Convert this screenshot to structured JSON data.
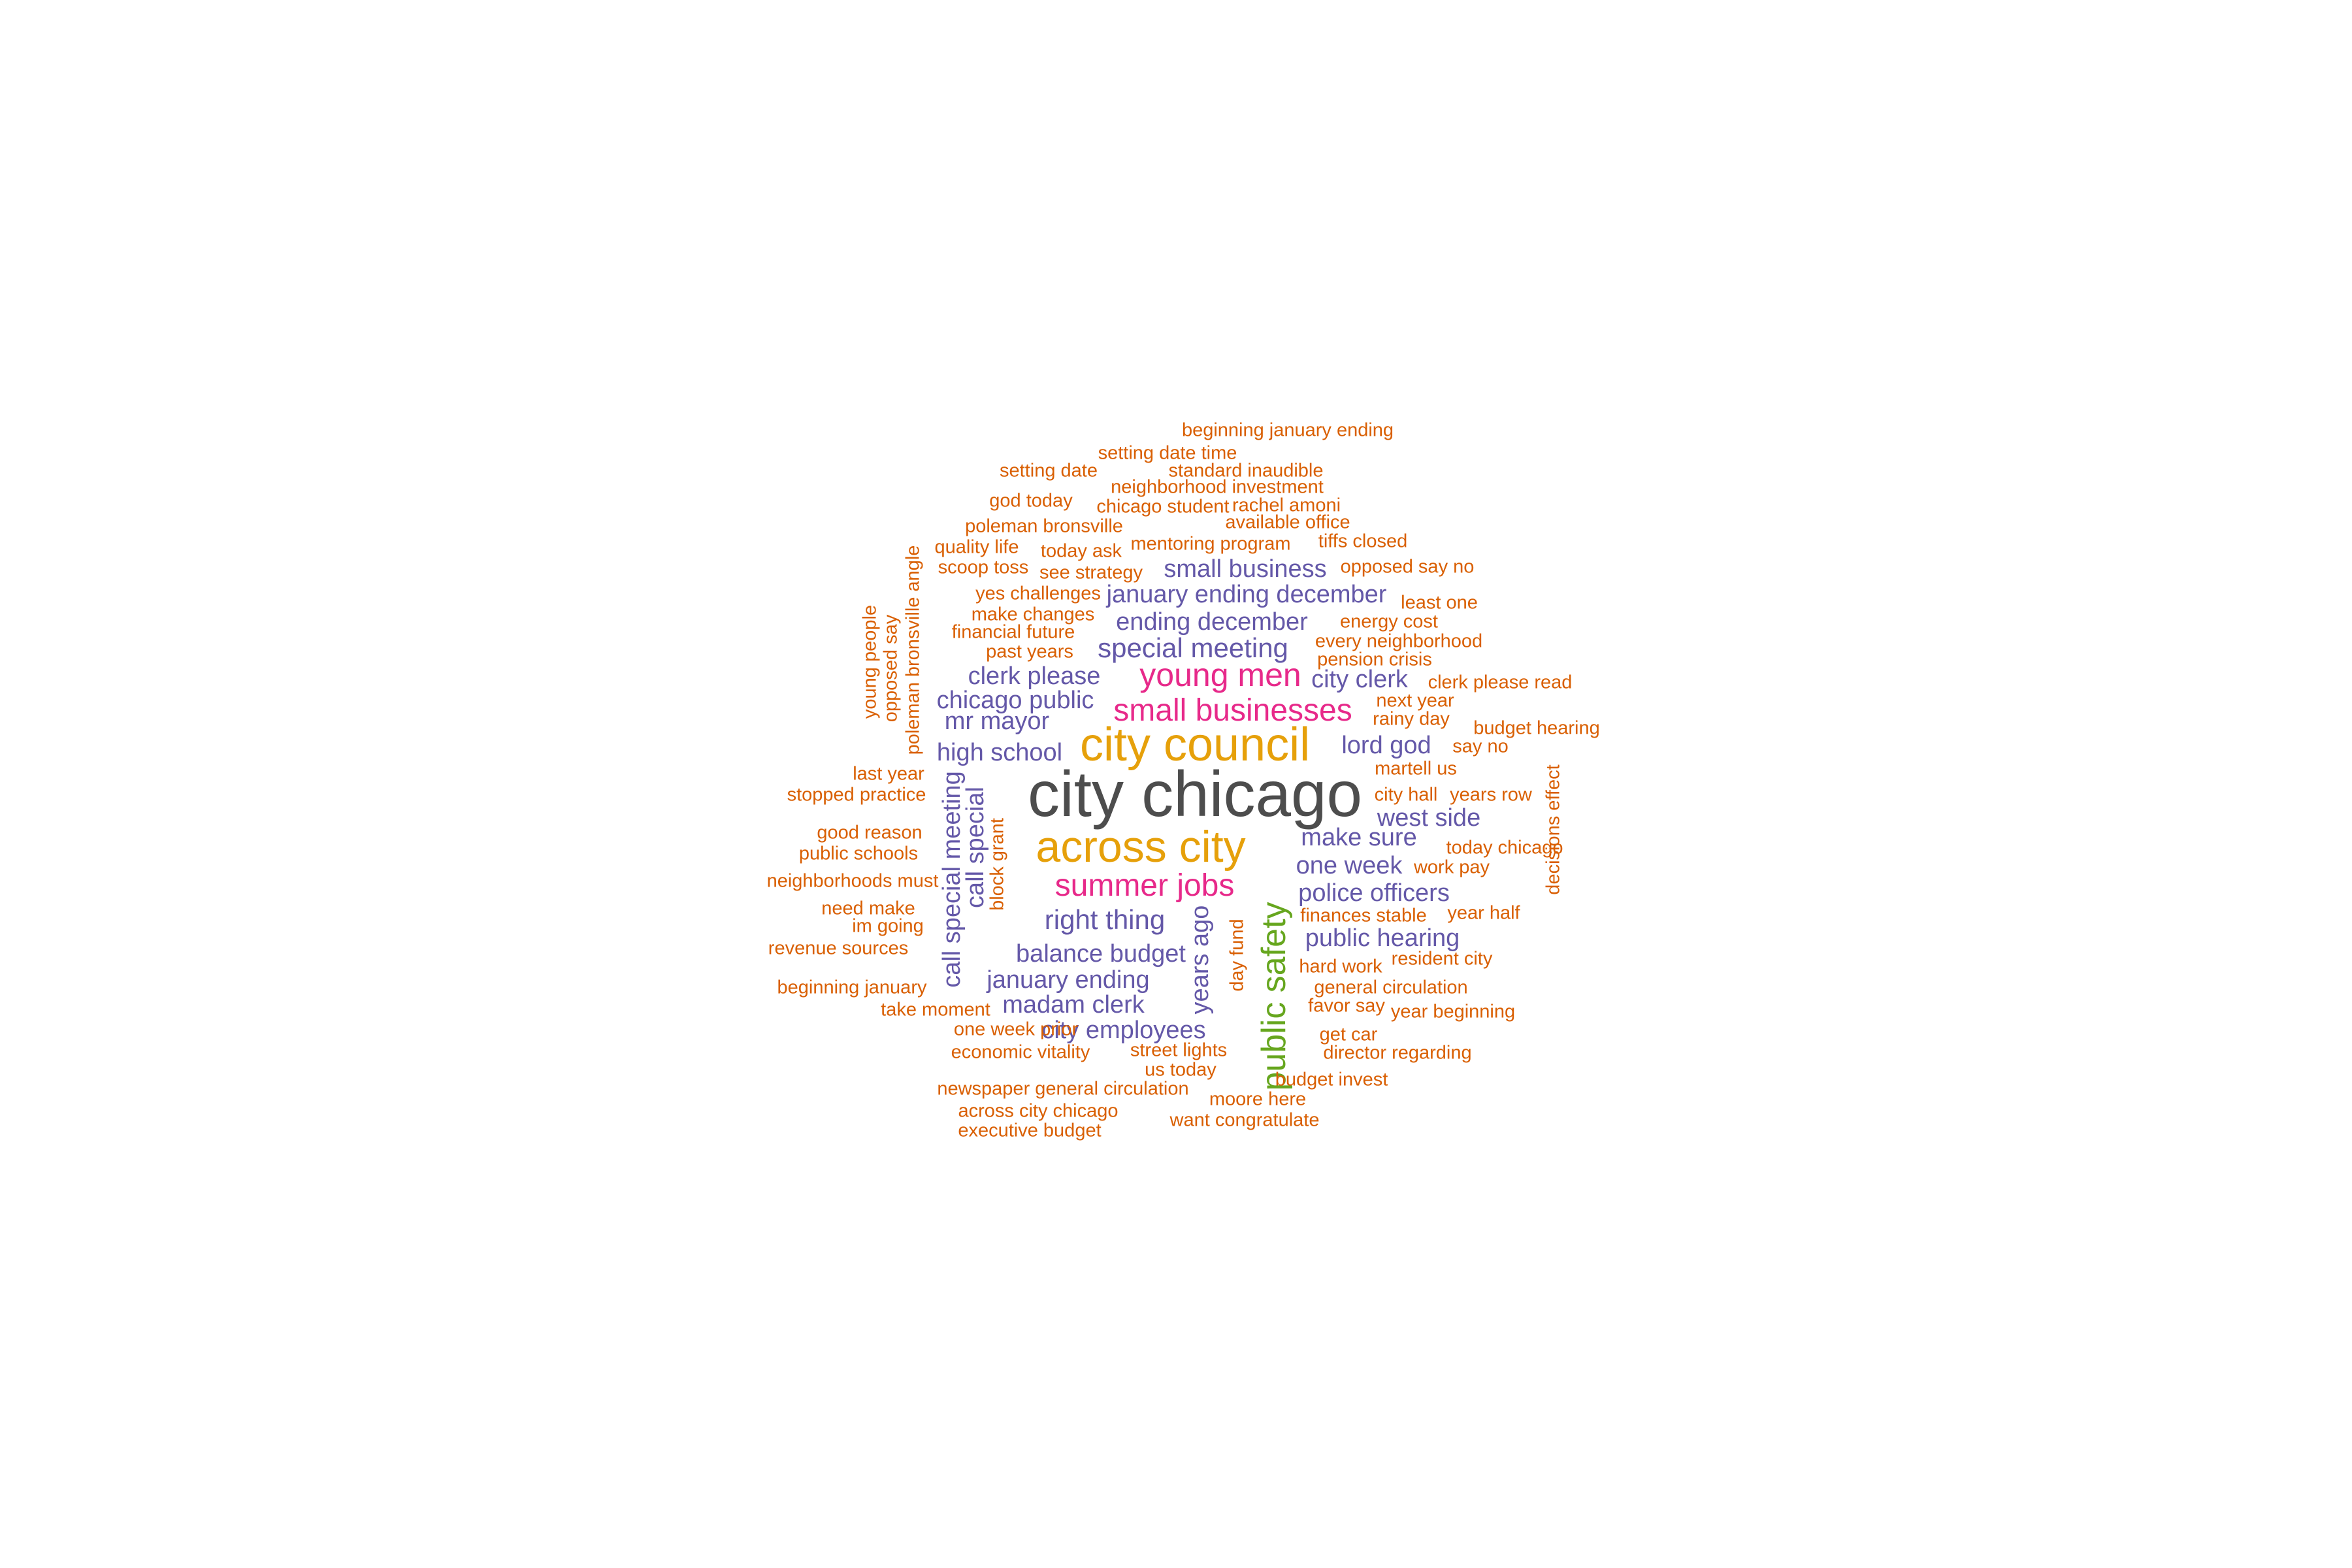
{
  "palette": {
    "dark": "#4d4d4d",
    "gold": "#e6a00a",
    "magenta": "#e7298a",
    "purple": "#6458a8",
    "green": "#66a61e",
    "orange": "#d95f02"
  },
  "words": [
    {
      "text": "city chicago",
      "color": "dark",
      "weight": 1.0
    },
    {
      "text": "city council",
      "color": "gold",
      "weight": 0.78
    },
    {
      "text": "across city",
      "color": "gold",
      "weight": 0.74
    },
    {
      "text": "young men",
      "color": "magenta",
      "weight": 0.55
    },
    {
      "text": "small businesses",
      "color": "magenta",
      "weight": 0.55
    },
    {
      "text": "summer jobs",
      "color": "magenta",
      "weight": 0.55
    },
    {
      "text": "public safety",
      "color": "green",
      "weight": 0.58
    },
    {
      "text": "small business",
      "color": "purple",
      "weight": 0.42
    },
    {
      "text": "january ending december",
      "color": "purple",
      "weight": 0.42
    },
    {
      "text": "ending december",
      "color": "purple",
      "weight": 0.42
    },
    {
      "text": "special meeting",
      "color": "purple",
      "weight": 0.46
    },
    {
      "text": "clerk please",
      "color": "purple",
      "weight": 0.42
    },
    {
      "text": "city clerk",
      "color": "purple",
      "weight": 0.42
    },
    {
      "text": "chicago public",
      "color": "purple",
      "weight": 0.42
    },
    {
      "text": "mr mayor",
      "color": "purple",
      "weight": 0.42
    },
    {
      "text": "high school",
      "color": "purple",
      "weight": 0.42
    },
    {
      "text": "lord god",
      "color": "purple",
      "weight": 0.42
    },
    {
      "text": "west side",
      "color": "purple",
      "weight": 0.42
    },
    {
      "text": "make sure",
      "color": "purple",
      "weight": 0.42
    },
    {
      "text": "one week",
      "color": "purple",
      "weight": 0.42
    },
    {
      "text": "police officers",
      "color": "purple",
      "weight": 0.42
    },
    {
      "text": "right thing",
      "color": "purple",
      "weight": 0.46
    },
    {
      "text": "public hearing",
      "color": "purple",
      "weight": 0.42
    },
    {
      "text": "balance budget",
      "color": "purple",
      "weight": 0.42
    },
    {
      "text": "january ending",
      "color": "purple",
      "weight": 0.42
    },
    {
      "text": "madam clerk",
      "color": "purple",
      "weight": 0.42
    },
    {
      "text": "city employees",
      "color": "purple",
      "weight": 0.42
    },
    {
      "text": "call special meeting",
      "color": "purple",
      "weight": 0.42
    },
    {
      "text": "call special",
      "color": "purple",
      "weight": 0.42
    },
    {
      "text": "years ago",
      "color": "purple",
      "weight": 0.42
    },
    {
      "text": "beginning january ending",
      "color": "orange",
      "weight": 0.3
    },
    {
      "text": "setting date time",
      "color": "orange",
      "weight": 0.3
    },
    {
      "text": "setting date",
      "color": "orange",
      "weight": 0.3
    },
    {
      "text": "standard inaudible",
      "color": "orange",
      "weight": 0.3
    },
    {
      "text": "neighborhood investment",
      "color": "orange",
      "weight": 0.3
    },
    {
      "text": "god today",
      "color": "orange",
      "weight": 0.3
    },
    {
      "text": "chicago student",
      "color": "orange",
      "weight": 0.3
    },
    {
      "text": "rachel amoni",
      "color": "orange",
      "weight": 0.3
    },
    {
      "text": "poleman bronsville",
      "color": "orange",
      "weight": 0.3
    },
    {
      "text": "available office",
      "color": "orange",
      "weight": 0.3
    },
    {
      "text": "quality life",
      "color": "orange",
      "weight": 0.3
    },
    {
      "text": "today ask",
      "color": "orange",
      "weight": 0.3
    },
    {
      "text": "mentoring program",
      "color": "orange",
      "weight": 0.3
    },
    {
      "text": "tiffs closed",
      "color": "orange",
      "weight": 0.3
    },
    {
      "text": "scoop toss",
      "color": "orange",
      "weight": 0.3
    },
    {
      "text": "see strategy",
      "color": "orange",
      "weight": 0.3
    },
    {
      "text": "opposed say no",
      "color": "orange",
      "weight": 0.3
    },
    {
      "text": "yes challenges",
      "color": "orange",
      "weight": 0.3
    },
    {
      "text": "least one",
      "color": "orange",
      "weight": 0.3
    },
    {
      "text": "make changes",
      "color": "orange",
      "weight": 0.3
    },
    {
      "text": "energy cost",
      "color": "orange",
      "weight": 0.3
    },
    {
      "text": "financial future",
      "color": "orange",
      "weight": 0.3
    },
    {
      "text": "every neighborhood",
      "color": "orange",
      "weight": 0.3
    },
    {
      "text": "past years",
      "color": "orange",
      "weight": 0.3
    },
    {
      "text": "pension crisis",
      "color": "orange",
      "weight": 0.3
    },
    {
      "text": "clerk please read",
      "color": "orange",
      "weight": 0.3
    },
    {
      "text": "next year",
      "color": "orange",
      "weight": 0.3
    },
    {
      "text": "rainy day",
      "color": "orange",
      "weight": 0.3
    },
    {
      "text": "budget hearing",
      "color": "orange",
      "weight": 0.3
    },
    {
      "text": "say no",
      "color": "orange",
      "weight": 0.3
    },
    {
      "text": "martell us",
      "color": "orange",
      "weight": 0.3
    },
    {
      "text": "last year",
      "color": "orange",
      "weight": 0.3
    },
    {
      "text": "stopped practice",
      "color": "orange",
      "weight": 0.3
    },
    {
      "text": "city hall",
      "color": "orange",
      "weight": 0.3
    },
    {
      "text": "years row",
      "color": "orange",
      "weight": 0.3
    },
    {
      "text": "good reason",
      "color": "orange",
      "weight": 0.3
    },
    {
      "text": "public schools",
      "color": "orange",
      "weight": 0.3
    },
    {
      "text": "today chicago",
      "color": "orange",
      "weight": 0.3
    },
    {
      "text": "work pay",
      "color": "orange",
      "weight": 0.3
    },
    {
      "text": "neighborhoods must",
      "color": "orange",
      "weight": 0.3
    },
    {
      "text": "need make",
      "color": "orange",
      "weight": 0.3
    },
    {
      "text": "im going",
      "color": "orange",
      "weight": 0.3
    },
    {
      "text": "finances stable",
      "color": "orange",
      "weight": 0.3
    },
    {
      "text": "year half",
      "color": "orange",
      "weight": 0.3
    },
    {
      "text": "revenue sources",
      "color": "orange",
      "weight": 0.3
    },
    {
      "text": "hard work",
      "color": "orange",
      "weight": 0.3
    },
    {
      "text": "resident city",
      "color": "orange",
      "weight": 0.3
    },
    {
      "text": "beginning january",
      "color": "orange",
      "weight": 0.3
    },
    {
      "text": "general circulation",
      "color": "orange",
      "weight": 0.3
    },
    {
      "text": "favor say",
      "color": "orange",
      "weight": 0.3
    },
    {
      "text": "take moment",
      "color": "orange",
      "weight": 0.3
    },
    {
      "text": "year beginning",
      "color": "orange",
      "weight": 0.3
    },
    {
      "text": "one week prior",
      "color": "orange",
      "weight": 0.3
    },
    {
      "text": "get car",
      "color": "orange",
      "weight": 0.3
    },
    {
      "text": "economic vitality",
      "color": "orange",
      "weight": 0.3
    },
    {
      "text": "street lights",
      "color": "orange",
      "weight": 0.3
    },
    {
      "text": "director regarding",
      "color": "orange",
      "weight": 0.3
    },
    {
      "text": "us today",
      "color": "orange",
      "weight": 0.3
    },
    {
      "text": "budget invest",
      "color": "orange",
      "weight": 0.3
    },
    {
      "text": "newspaper general circulation",
      "color": "orange",
      "weight": 0.3
    },
    {
      "text": "moore here",
      "color": "orange",
      "weight": 0.3
    },
    {
      "text": "across city chicago",
      "color": "orange",
      "weight": 0.3
    },
    {
      "text": "want congratulate",
      "color": "orange",
      "weight": 0.3
    },
    {
      "text": "executive budget",
      "color": "orange",
      "weight": 0.3
    },
    {
      "text": "young people",
      "color": "orange",
      "weight": 0.3
    },
    {
      "text": "opposed say",
      "color": "orange",
      "weight": 0.3
    },
    {
      "text": "poleman bronsville angle",
      "color": "orange",
      "weight": 0.3
    },
    {
      "text": "block grant",
      "color": "orange",
      "weight": 0.3
    },
    {
      "text": "day fund",
      "color": "orange",
      "weight": 0.3
    },
    {
      "text": "decisions effect",
      "color": "orange",
      "weight": 0.3
    }
  ]
}
